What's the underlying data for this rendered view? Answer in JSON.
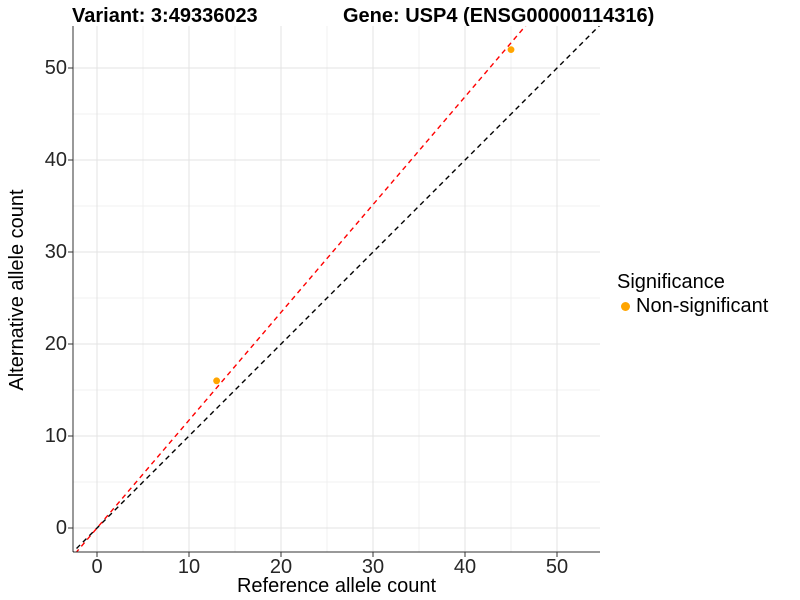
{
  "chart_data": {
    "type": "scatter",
    "title_left": "Variant: 3:49336023",
    "title_right": "Gene: USP4 (ENSG00000114316)",
    "xlabel": "Reference allele count",
    "ylabel": "Alternative allele count",
    "x_ticks": [
      0,
      10,
      20,
      30,
      40,
      50
    ],
    "y_ticks": [
      0,
      10,
      20,
      30,
      40,
      50
    ],
    "x_minor_ticks": [
      5,
      15,
      25,
      35,
      45
    ],
    "y_minor_ticks": [
      5,
      15,
      25,
      35,
      45
    ],
    "xlim": [
      -2.61,
      54.67
    ],
    "ylim": [
      -2.61,
      54.57
    ],
    "grid": {
      "major": true,
      "minor": true
    },
    "legend": {
      "title": "Significance",
      "position": "right",
      "items": [
        {
          "label": "Non-significant",
          "color": "#FFA500"
        }
      ]
    },
    "series": [
      {
        "name": "Non-significant",
        "color": "#FFA500",
        "points": [
          {
            "x": 13,
            "y": 16
          },
          {
            "x": 45,
            "y": 52
          }
        ]
      }
    ],
    "reference_lines": [
      {
        "name": "identity-line",
        "slope": 1,
        "intercept": 0,
        "color": "#000000",
        "style": "dashed"
      },
      {
        "name": "fitted-line",
        "slope": 1.172,
        "intercept": 0,
        "color": "#FF0000",
        "style": "dashed"
      }
    ]
  },
  "colors": {
    "background": "#ffffff",
    "grid_major": "#e3e3e3",
    "grid_minor": "#f0f0f0",
    "axis_line": "#333333",
    "tick_mark": "#333333",
    "tick_label": "#262626",
    "title_text": "#000000"
  }
}
